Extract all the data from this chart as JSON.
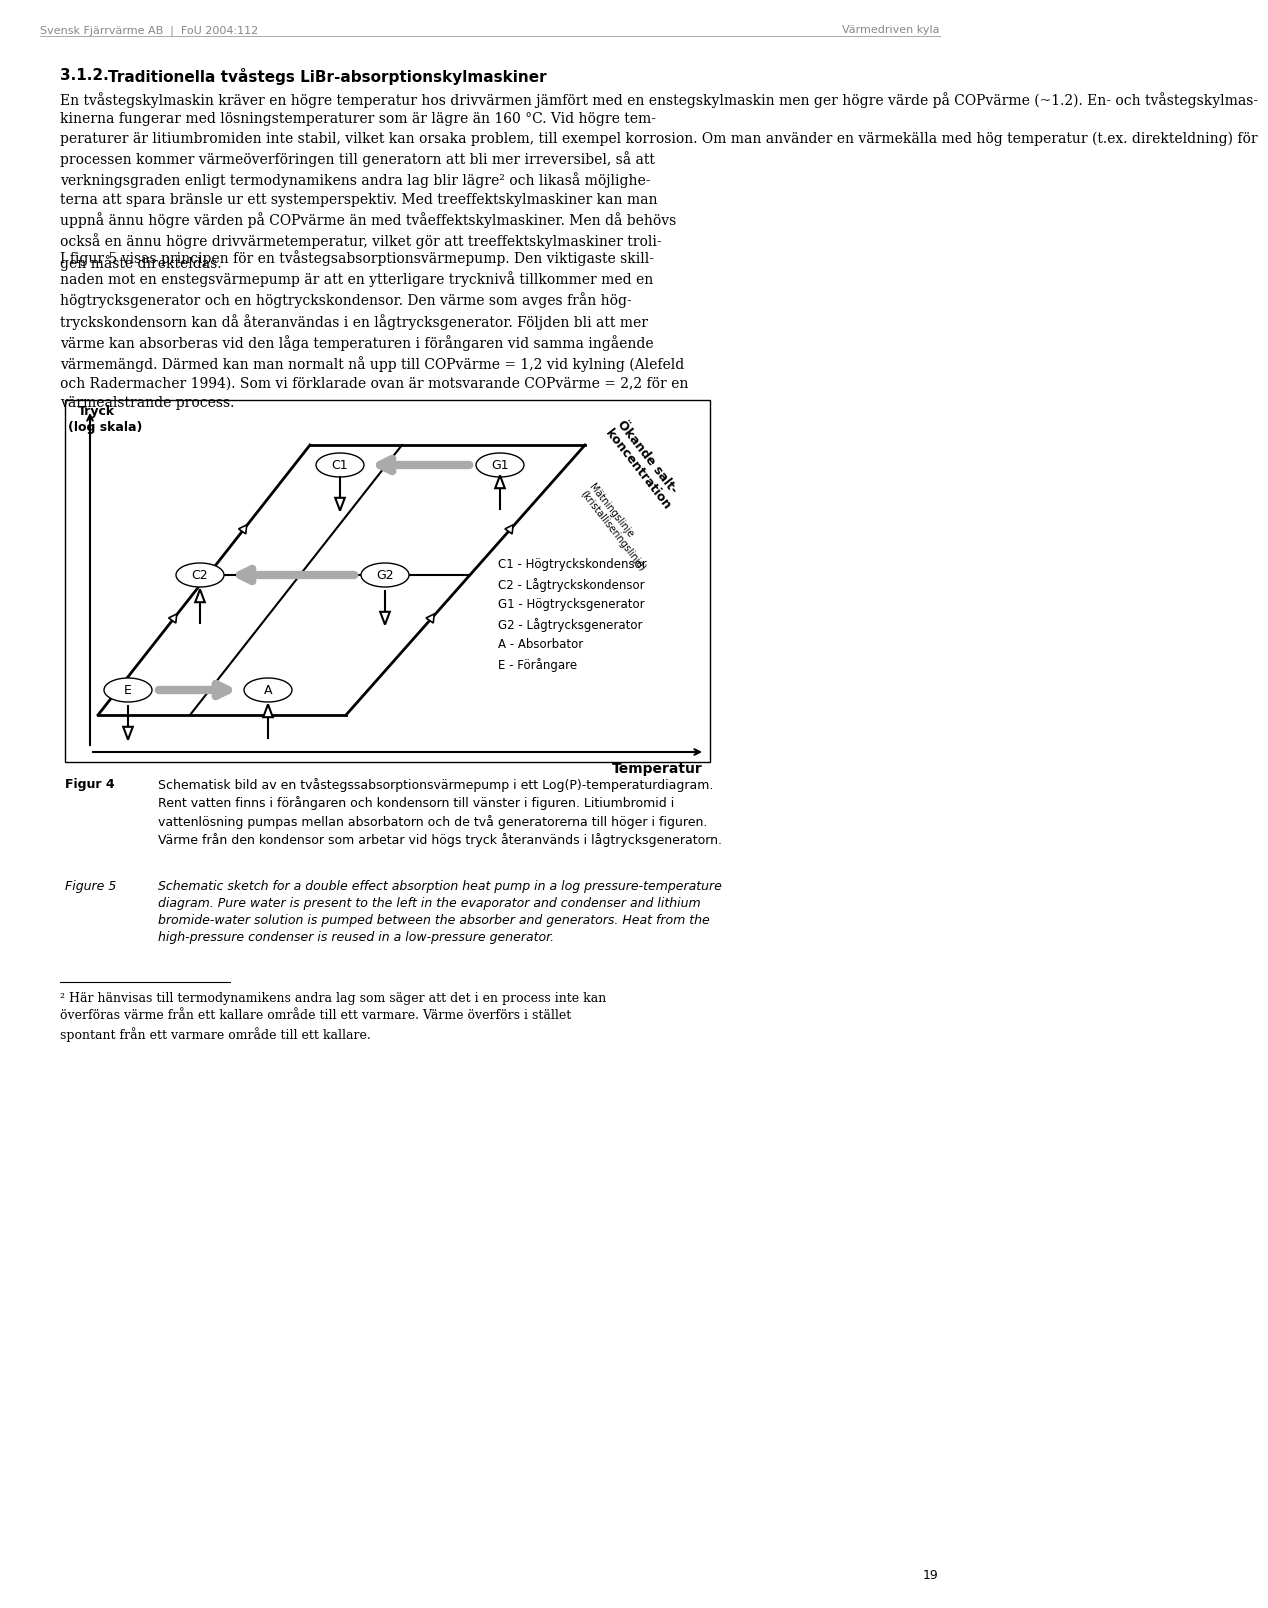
{
  "header_left": "Svensk Fjärrvärme AB  |  FoU 2004:112",
  "header_right": "Värmedriven kyla",
  "page_number": "19",
  "bg_color": "#ffffff",
  "text_color": "#000000",
  "header_color": "#888888",
  "para1": "En tvåstegskylmaskin kräver en högre temperatur hos drivvärmen jämfört med en enstegskylmaskin men ger högre värde på COPvärme (~1.2). En- och tvåstegskylmas-\nkinerna fungerar med lösningstemperaturer som är lägre än 160 °C. Vid högre tem-\nperaturer är litiumbromiden inte stabil, vilket kan orsaka problem, till exempel korrosion. Om man använder en värmekälla med hög temperatur (t.ex. direkteldning) för\nprocessen kommer värmeöverföringen till generatorn att bli mer irreversibel, så att\nverkningsgraden enligt termodynamikens andra lag blir lägre² och likaså möjlighe-\nterna att spara bränsle ur ett systemperspektiv. Med treeffektskylmaskiner kan man\nuppnå ännu högre värden på COPvärme än med tvåeffektskylmaskiner. Men då behövs\nockså en ännu högre drivvärmetemperatur, vilket gör att treeffektskylmaskiner troli-\ngen måste direkteldas.",
  "para2": "I figur 5 visas principen för en tvåstegsabsorptionsvärmepump. Den viktigaste skill-\nnaden mot en enstegsvärmepump är att en ytterligare trycknivå tillkommer med en\nhögtrycksgenerator och en högtryckskondensor. Den värme som avges från hög-\ntryckskondensorn kan då återanvändas i en lågtrycksgenerator. Följden bli att mer\nvärme kan absorberas vid den låga temperaturen i förångaren vid samma ingående\nvärmemängd. Därmed kan man normalt nå upp till COPvärme = 1,2 vid kylning (Alefeld\noch Radermacher 1994). Som vi förklarade ovan är motsvarande COPvärme = 2,2 för en\nvärmealstrande process.",
  "section_num": "3.1.2.",
  "section_title": "Traditionella tvåstegs LiBr-absorptionskylmaskiner",
  "fig4_label": "Figur 4",
  "fig4_caption": "Schematisk bild av en tvåstegssabsorptionsvärmepump i ett Log(P)-temperaturdiagram.\nRent vatten finns i förångaren och kondensorn till vänster i figuren. Litiumbromid i\nvattenlösning pumpas mellan absorbatorn och de två generatorerna till höger i figuren.\nVärme från den kondensor som arbetar vid högs tryck återanvänds i lågtrycksgeneratorn.",
  "fig5_label": "Figure 5",
  "fig5_caption": "Schematic sketch for a double effect absorption heat pump in a log pressure-temperature\ndiagram. Pure water is present to the left in the evaporator and condenser and lithium\nbromide-water solution is pumped between the absorber and generators. Heat from the\nhigh-pressure condenser is reused in a low-pressure generator.",
  "footnote": "² Här hänvisas till termodynamikens andra lag som säger att det i en process inte kan\növerföras värme från ett kallare område till ett varmare. Värme överförs i stället\nspontant från ett varmare område till ett kallare.",
  "legend_items": [
    "C1 - Högtryckskondensor",
    "C2 - Lågtryckskondensor",
    "G1 - Högtrycksgenerator",
    "G2 - Lågtrycksgenerator",
    "A - Absorbator",
    "E - Förångare"
  ],
  "axis_y_label1": "Tryck",
  "axis_y_label2": "(log skala)",
  "axis_x_label": "Temperatur",
  "diag_label1": "Ökande salt-\nkoncentration",
  "diag_label2": "Mätningslinje\n(kristalliseringslinje)"
}
